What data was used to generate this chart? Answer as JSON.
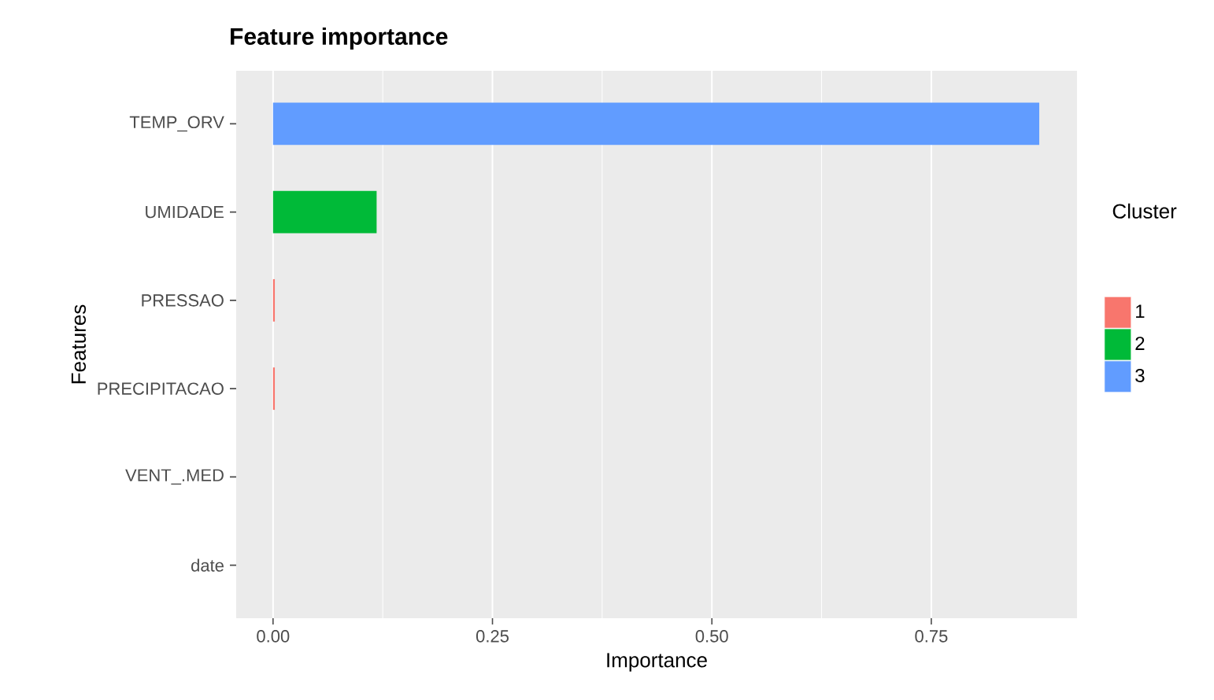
{
  "chart_data": {
    "type": "bar",
    "orientation": "horizontal",
    "title": "Feature importance",
    "xlabel": "Importance",
    "ylabel": "Features",
    "legend_title": "Cluster",
    "categories": [
      "TEMP_ORV",
      "UMIDADE",
      "PRESSAO",
      "PRECIPITACAO",
      "VENT_.MED",
      "date"
    ],
    "series": [
      {
        "name": "1",
        "color": "#f8766d",
        "values": [
          null,
          null,
          0.002,
          0.002,
          0,
          0
        ]
      },
      {
        "name": "2",
        "color": "#00ba38",
        "values": [
          null,
          0.118,
          null,
          null,
          null,
          null
        ]
      },
      {
        "name": "3",
        "color": "#619cff",
        "values": [
          0.873,
          null,
          null,
          null,
          null,
          null
        ]
      }
    ],
    "xlim": [
      -0.042,
      0.916
    ],
    "xticks": [
      {
        "value": 0,
        "label": "0.00"
      },
      {
        "value": 0.25,
        "label": "0.25"
      },
      {
        "value": 0.5,
        "label": "0.50"
      },
      {
        "value": 0.75,
        "label": "0.75"
      }
    ],
    "grid": "x",
    "legend": "right"
  }
}
